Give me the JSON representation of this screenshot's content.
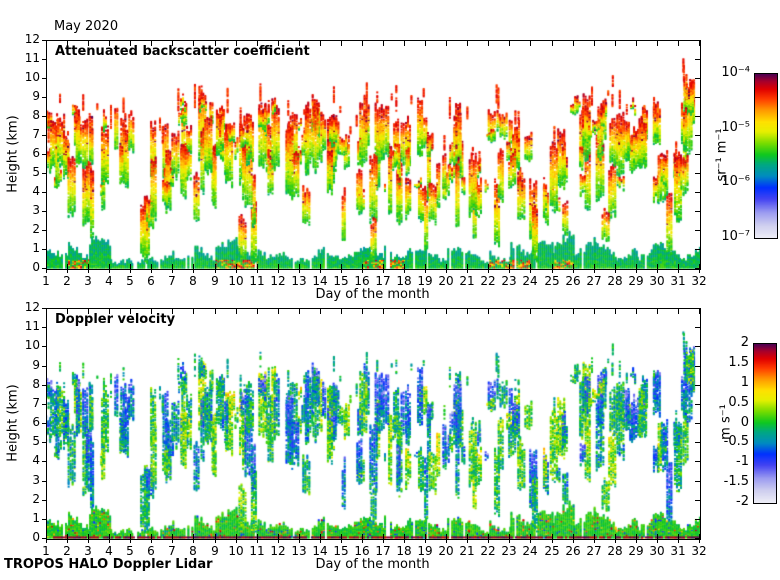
{
  "title": "May 2020",
  "footer": "TROPOS HALO Doppler Lidar",
  "colormap": {
    "description": "jet-like colormap: pale lavender (low) through blue, teal, green, yellow, orange, red to dark purple (high)",
    "stops": [
      {
        "t": 0.0,
        "c": "#F0F0F7"
      },
      {
        "t": 0.08,
        "c": "#CFCFEF"
      },
      {
        "t": 0.16,
        "c": "#9A9AF0"
      },
      {
        "t": 0.24,
        "c": "#4444F2"
      },
      {
        "t": 0.31,
        "c": "#0030FF"
      },
      {
        "t": 0.38,
        "c": "#008CC0"
      },
      {
        "t": 0.45,
        "c": "#00A882"
      },
      {
        "t": 0.51,
        "c": "#0FC81E"
      },
      {
        "t": 0.58,
        "c": "#78DC00"
      },
      {
        "t": 0.65,
        "c": "#E6F000"
      },
      {
        "t": 0.71,
        "c": "#FFE100"
      },
      {
        "t": 0.78,
        "c": "#FF9B00"
      },
      {
        "t": 0.85,
        "c": "#FF3C00"
      },
      {
        "t": 0.91,
        "c": "#E00000"
      },
      {
        "t": 0.96,
        "c": "#A3002E"
      },
      {
        "t": 1.0,
        "c": "#500050"
      }
    ]
  },
  "panels": [
    {
      "label": "Attenuated backscatter coefficient",
      "xlabel": "Day of the month",
      "ylabel": "Height (km)",
      "x_ticks": [
        1,
        2,
        3,
        4,
        5,
        6,
        7,
        8,
        9,
        10,
        11,
        12,
        13,
        14,
        15,
        16,
        17,
        18,
        19,
        20,
        21,
        22,
        23,
        24,
        25,
        26,
        27,
        28,
        29,
        30,
        31,
        32
      ],
      "y_ticks": [
        0,
        1,
        2,
        3,
        4,
        5,
        6,
        7,
        8,
        9,
        10,
        11,
        12
      ],
      "colorbar": {
        "unit": "sr⁻¹ m⁻¹",
        "tick_labels": [
          "10⁻⁴",
          "10⁻⁵",
          "10⁻⁶",
          "10⁻⁷"
        ],
        "scale": "log"
      }
    },
    {
      "label": "Doppler velocity",
      "xlabel": "Day of the month",
      "ylabel": "Height (km)",
      "x_ticks": [
        1,
        2,
        3,
        4,
        5,
        6,
        7,
        8,
        9,
        10,
        11,
        12,
        13,
        14,
        15,
        16,
        17,
        18,
        19,
        20,
        21,
        22,
        23,
        24,
        25,
        26,
        27,
        28,
        29,
        30,
        31,
        32
      ],
      "y_ticks": [
        0,
        1,
        2,
        3,
        4,
        5,
        6,
        7,
        8,
        9,
        10,
        11,
        12
      ],
      "colorbar": {
        "unit": "m s⁻¹",
        "tick_labels": [
          "2",
          "1.5",
          "1",
          "0.5",
          "0",
          "-0.5",
          "-1",
          "-1.5",
          "-2"
        ],
        "scale": "linear"
      }
    }
  ],
  "chart_data": [
    {
      "type": "heatmap",
      "title": "Attenuated backscatter coefficient",
      "subtitle": "May 2020",
      "xlabel": "Day of the month",
      "ylabel": "Height (km)",
      "xlim": [
        1,
        32
      ],
      "ylim": [
        0,
        12
      ],
      "grid": false,
      "legend_position": "right-colorbar",
      "colorbar_unit": "sr⁻¹ m⁻¹",
      "colorbar_scale": "log",
      "colorbar_range": [
        "1e-7",
        "1e-4"
      ],
      "description": "Monthly time-height composite of lidar attenuated backscatter. Continuous teal/green boundary-layer aerosol below ~1-2 km all month; narrow vertical cloud/precipitation streaks with strong (red, ~1e-5 to 1e-4) tops between 3 and 9.5 km fading to yellow/green below; occasional dark-purple saturation specks; strongest/most persistent cloudiness days 1-2, 7-8, 11, 13-18, 20, 22, 26-28 and a deep column reaching ~11 km at day 32.",
      "per_day": [
        {
          "day": 1,
          "bl_top_km": 2.0,
          "cloud_top_km": 8.5,
          "density": 0.8,
          "hot_bl": false
        },
        {
          "day": 2,
          "bl_top_km": 1.8,
          "cloud_top_km": 9.0,
          "density": 0.9,
          "hot_bl": true
        },
        {
          "day": 3,
          "bl_top_km": 1.5,
          "cloud_top_km": 8.5,
          "density": 0.5,
          "hot_bl": false
        },
        {
          "day": 4,
          "bl_top_km": 0.9,
          "cloud_top_km": 9.0,
          "density": 0.3,
          "hot_bl": false
        },
        {
          "day": 5,
          "bl_top_km": 0.8,
          "cloud_top_km": 5.5,
          "density": 0.15,
          "hot_bl": false
        },
        {
          "day": 6,
          "bl_top_km": 1.0,
          "cloud_top_km": 8.0,
          "density": 0.5,
          "hot_bl": false
        },
        {
          "day": 7,
          "bl_top_km": 1.2,
          "cloud_top_km": 9.2,
          "density": 0.75,
          "hot_bl": false
        },
        {
          "day": 8,
          "bl_top_km": 1.2,
          "cloud_top_km": 9.4,
          "density": 0.8,
          "hot_bl": false
        },
        {
          "day": 9,
          "bl_top_km": 1.5,
          "cloud_top_km": 9.0,
          "density": 0.6,
          "hot_bl": true
        },
        {
          "day": 10,
          "bl_top_km": 1.8,
          "cloud_top_km": 8.5,
          "density": 0.65,
          "hot_bl": true
        },
        {
          "day": 11,
          "bl_top_km": 1.5,
          "cloud_top_km": 9.0,
          "density": 0.8,
          "hot_bl": false
        },
        {
          "day": 12,
          "bl_top_km": 1.0,
          "cloud_top_km": 8.5,
          "density": 0.5,
          "hot_bl": false
        },
        {
          "day": 13,
          "bl_top_km": 1.2,
          "cloud_top_km": 9.2,
          "density": 0.8,
          "hot_bl": false
        },
        {
          "day": 14,
          "bl_top_km": 1.2,
          "cloud_top_km": 9.0,
          "density": 0.8,
          "hot_bl": false
        },
        {
          "day": 15,
          "bl_top_km": 1.0,
          "cloud_top_km": 7.5,
          "density": 0.6,
          "hot_bl": false
        },
        {
          "day": 16,
          "bl_top_km": 1.3,
          "cloud_top_km": 9.4,
          "density": 0.8,
          "hot_bl": true
        },
        {
          "day": 17,
          "bl_top_km": 1.5,
          "cloud_top_km": 9.2,
          "density": 0.8,
          "hot_bl": true
        },
        {
          "day": 18,
          "bl_top_km": 1.0,
          "cloud_top_km": 9.5,
          "density": 0.7,
          "hot_bl": false
        },
        {
          "day": 19,
          "bl_top_km": 1.0,
          "cloud_top_km": 7.5,
          "density": 0.6,
          "hot_bl": false
        },
        {
          "day": 20,
          "bl_top_km": 1.0,
          "cloud_top_km": 9.0,
          "density": 0.7,
          "hot_bl": false
        },
        {
          "day": 21,
          "bl_top_km": 0.9,
          "cloud_top_km": 6.5,
          "density": 0.5,
          "hot_bl": false
        },
        {
          "day": 22,
          "bl_top_km": 1.2,
          "cloud_top_km": 9.0,
          "density": 0.7,
          "hot_bl": true
        },
        {
          "day": 23,
          "bl_top_km": 1.5,
          "cloud_top_km": 8.5,
          "density": 0.5,
          "hot_bl": true
        },
        {
          "day": 24,
          "bl_top_km": 1.3,
          "cloud_top_km": 5.0,
          "density": 0.2,
          "hot_bl": false
        },
        {
          "day": 25,
          "bl_top_km": 1.8,
          "cloud_top_km": 8.0,
          "density": 0.4,
          "hot_bl": true
        },
        {
          "day": 26,
          "bl_top_km": 1.5,
          "cloud_top_km": 9.4,
          "density": 0.8,
          "hot_bl": false
        },
        {
          "day": 27,
          "bl_top_km": 1.3,
          "cloud_top_km": 9.5,
          "density": 0.85,
          "hot_bl": false
        },
        {
          "day": 28,
          "bl_top_km": 1.2,
          "cloud_top_km": 9.2,
          "density": 0.8,
          "hot_bl": false
        },
        {
          "day": 29,
          "bl_top_km": 1.5,
          "cloud_top_km": 9.3,
          "density": 0.6,
          "hot_bl": false
        },
        {
          "day": 30,
          "bl_top_km": 1.3,
          "cloud_top_km": 6.5,
          "density": 0.4,
          "hot_bl": false
        },
        {
          "day": 31,
          "bl_top_km": 1.2,
          "cloud_top_km": 10.8,
          "density": 0.75,
          "hot_bl": false
        }
      ]
    },
    {
      "type": "heatmap",
      "title": "Doppler velocity",
      "xlabel": "Day of the month",
      "ylabel": "Height (km)",
      "xlim": [
        1,
        32
      ],
      "ylim": [
        0,
        12
      ],
      "grid": false,
      "legend_position": "right-colorbar",
      "colorbar_unit": "m s⁻¹",
      "colorbar_scale": "linear",
      "colorbar_range": [
        -2,
        2
      ],
      "description": "Doppler velocity in the same cloud/aerosol structures as the backscatter panel: boundary layer mostly near 0 m/s (green) with sporadic +1 to +2 m/s (orange/red) specks; cloud and fall streaks dominated by -0.5 to -1.5 m/s (blue) with pale cells near -2 m/s; thin dark (ground-return) line along 0 km."
    }
  ]
}
